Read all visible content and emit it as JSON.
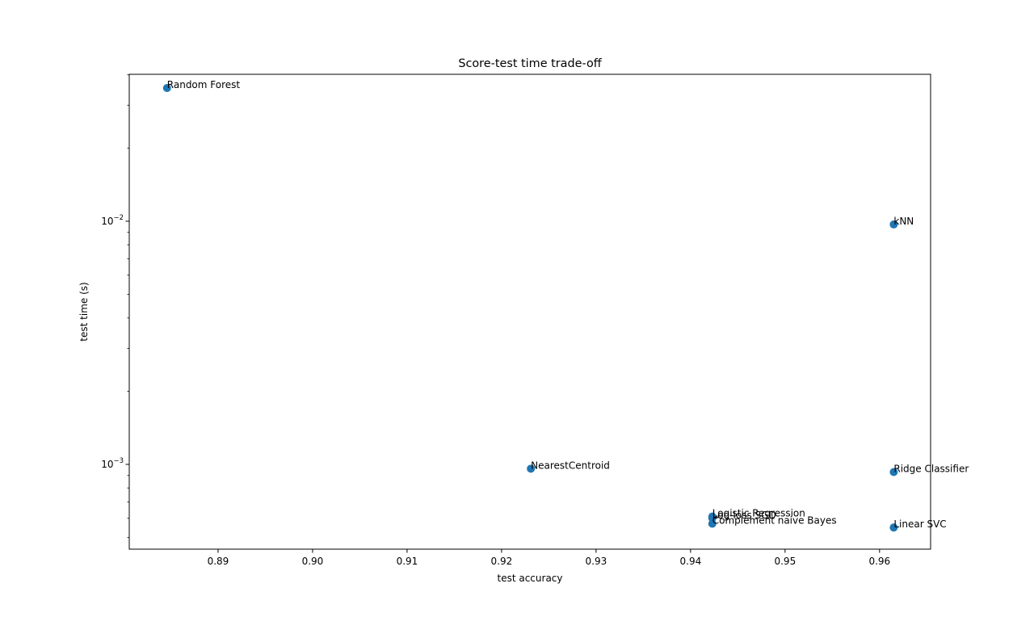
{
  "chart_data": {
    "type": "scatter",
    "title": "Score-test time trade-off",
    "xlabel": "test accuracy",
    "ylabel": "test time (s)",
    "xlim": [
      0.8806,
      0.9654
    ],
    "ylim": [
      0.000448,
      0.0402
    ],
    "yscale": "log",
    "grid": false,
    "marker_color": "#1f77b4",
    "x_ticks": [
      {
        "value": 0.89,
        "label": "0.89"
      },
      {
        "value": 0.9,
        "label": "0.90"
      },
      {
        "value": 0.91,
        "label": "0.91"
      },
      {
        "value": 0.92,
        "label": "0.92"
      },
      {
        "value": 0.93,
        "label": "0.93"
      },
      {
        "value": 0.94,
        "label": "0.94"
      },
      {
        "value": 0.95,
        "label": "0.95"
      },
      {
        "value": 0.96,
        "label": "0.96"
      }
    ],
    "y_ticks": [
      {
        "value": 0.01,
        "base": "10",
        "exp": "−2"
      },
      {
        "value": 0.001,
        "base": "10",
        "exp": "−3"
      }
    ],
    "points": [
      {
        "name": "Random Forest",
        "x": 0.8846,
        "y": 0.0353
      },
      {
        "name": "kNN",
        "x": 0.9615,
        "y": 0.0097
      },
      {
        "name": "NearestCentroid",
        "x": 0.9231,
        "y": 0.00096
      },
      {
        "name": "Ridge Classifier",
        "x": 0.9615,
        "y": 0.00093
      },
      {
        "name": "Logistic Regression",
        "x": 0.9423,
        "y": 0.00061
      },
      {
        "name": "Log-loss SGD",
        "x": 0.9423,
        "y": 0.0006
      },
      {
        "name": "Complement naive Bayes",
        "x": 0.9423,
        "y": 0.00057
      },
      {
        "name": "Linear SVC",
        "x": 0.9615,
        "y": 0.00055
      }
    ]
  }
}
